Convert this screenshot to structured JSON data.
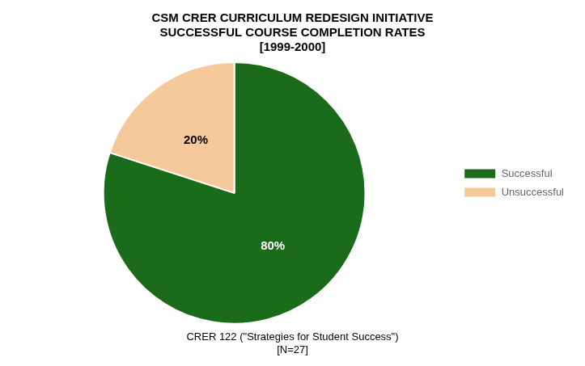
{
  "chart_data": {
    "type": "pie",
    "title": [
      "CSM CRER CURRICULUM REDESIGN INITIATIVE",
      "SUCCESSFUL COURSE COMPLETION RATES",
      "[1999-2000]"
    ],
    "subtitle": [
      "CRER 122 (\"Strategies for Student Success\")",
      "[N=27]"
    ],
    "categories": [
      "Successful",
      "Unsuccessful"
    ],
    "values": [
      80,
      20
    ],
    "value_labels": [
      "80%",
      "20%"
    ],
    "colors": [
      "#1a6b1a",
      "#f5c99a"
    ],
    "legend": "right",
    "data_labels": true
  }
}
